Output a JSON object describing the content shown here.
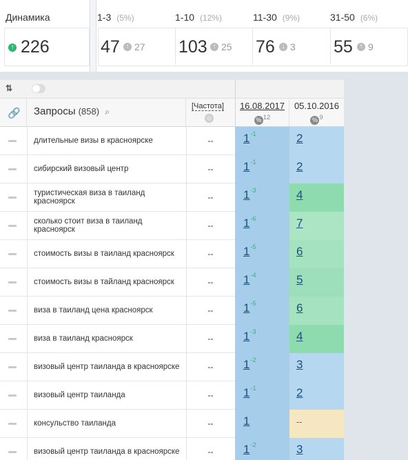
{
  "stats": {
    "dynamics": {
      "label": "Динамика",
      "value": "226"
    },
    "groups": [
      {
        "label": "1-3",
        "pct": "(5%)",
        "value": "47",
        "delta": "27",
        "dir": "up"
      },
      {
        "label": "1-10",
        "pct": "(12%)",
        "value": "103",
        "delta": "25",
        "dir": "up"
      },
      {
        "label": "11-30",
        "pct": "(9%)",
        "value": "76",
        "delta": "3",
        "dir": "down"
      },
      {
        "label": "31-50",
        "pct": "(6%)",
        "value": "55",
        "delta": "9",
        "dir": "up"
      }
    ]
  },
  "table": {
    "query_title": "Запросы",
    "query_count": "(858)",
    "freq_label": "[Частота]",
    "dates": [
      {
        "label": "16.08.2017",
        "badge": "%",
        "count": "12"
      },
      {
        "label": "05.10.2016",
        "badge": "%",
        "count": "9"
      }
    ],
    "rows": [
      {
        "query": "длительные визы в красноярске",
        "freq": "--",
        "p1": "1",
        "c1": "-1",
        "p2": "2",
        "color": "#b6d7f0"
      },
      {
        "query": "сибирский визовый центр",
        "freq": "--",
        "p1": "1",
        "c1": "-1",
        "p2": "2",
        "color": "#b6d7f0"
      },
      {
        "query": "туристическая виза в таиланд красноярск",
        "freq": "--",
        "p1": "1",
        "c1": "-3",
        "p2": "4",
        "color": "#8edbb0"
      },
      {
        "query": "сколько стоит виза в таиланд красноярск",
        "freq": "--",
        "p1": "1",
        "c1": "-6",
        "p2": "7",
        "color": "#ace5c4"
      },
      {
        "query": "стоимость визы в таиланд красноярск",
        "freq": "--",
        "p1": "1",
        "c1": "-5",
        "p2": "6",
        "color": "#a5e2c0"
      },
      {
        "query": "стоимость визы в тайланд красноярск",
        "freq": "--",
        "p1": "1",
        "c1": "-4",
        "p2": "5",
        "color": "#9ddfba"
      },
      {
        "query": "виза в таиланд цена красноярск",
        "freq": "--",
        "p1": "1",
        "c1": "-5",
        "p2": "6",
        "color": "#a5e2c0"
      },
      {
        "query": "виза в таиланд красноярск",
        "freq": "--",
        "p1": "1",
        "c1": "-3",
        "p2": "4",
        "color": "#8edbb0"
      },
      {
        "query": "визовый центр таиланда в красноярске",
        "freq": "--",
        "p1": "1",
        "c1": "-2",
        "p2": "3",
        "color": "#b6d7f0"
      },
      {
        "query": "визовый центр таиланда",
        "freq": "--",
        "p1": "1",
        "c1": "-1",
        "p2": "2",
        "color": "#b6d7f0"
      },
      {
        "query": "консульство таиланда",
        "freq": "--",
        "p1": "1",
        "c1": "",
        "p2": "--",
        "color": "#f6e7c3"
      },
      {
        "query": "визовый центр таиланда в красноярске",
        "freq": "--",
        "p1": "1",
        "c1": "-2",
        "p2": "3",
        "color": "#b6d7f0"
      }
    ]
  }
}
